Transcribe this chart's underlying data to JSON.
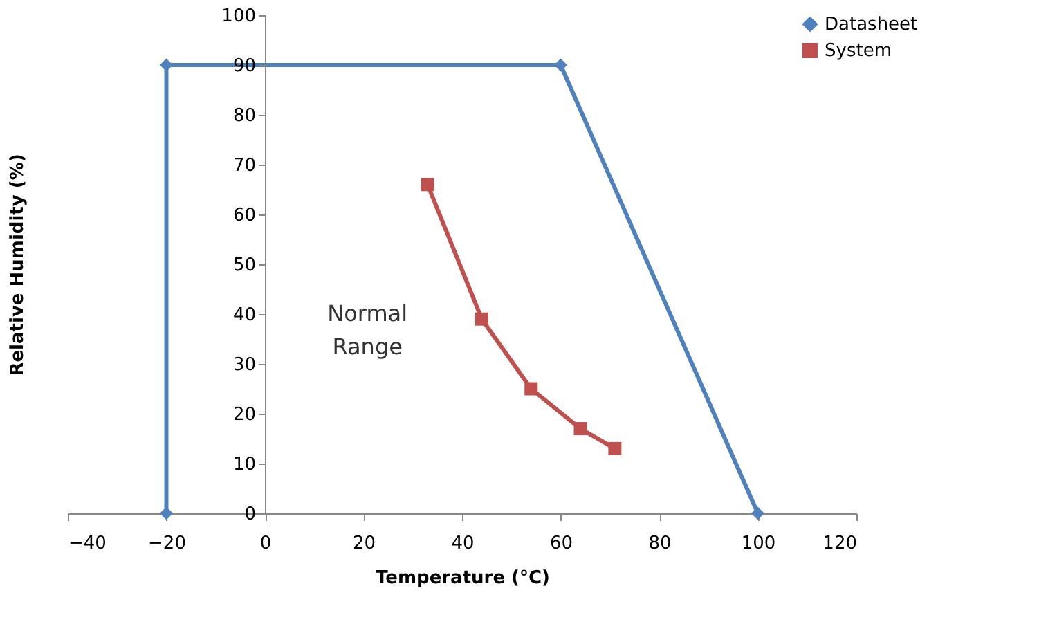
{
  "chart_data": {
    "type": "line",
    "xlabel": "Temperature (°C)",
    "ylabel": "Relative Humidity (%)",
    "series": [
      {
        "name": "Datasheet",
        "color": "#4f81bd",
        "marker": "diamond",
        "x": [
          -20,
          -20,
          60,
          100
        ],
        "values": [
          0,
          90,
          90,
          0
        ]
      },
      {
        "name": "System",
        "color": "#c0504d",
        "marker": "square",
        "x": [
          33,
          44,
          54,
          64,
          71
        ],
        "values": [
          66,
          39,
          25,
          17,
          13
        ]
      }
    ],
    "xlim": [
      -40,
      120
    ],
    "xticks": [
      -40,
      -20,
      0,
      20,
      40,
      60,
      80,
      100,
      120
    ],
    "ylim": [
      0,
      100
    ],
    "yticks": [
      0,
      10,
      20,
      30,
      40,
      50,
      60,
      70,
      80,
      90,
      100
    ],
    "grid": false,
    "legend": "right",
    "line_style": "solid",
    "annotations": [
      "Normal Range"
    ]
  }
}
